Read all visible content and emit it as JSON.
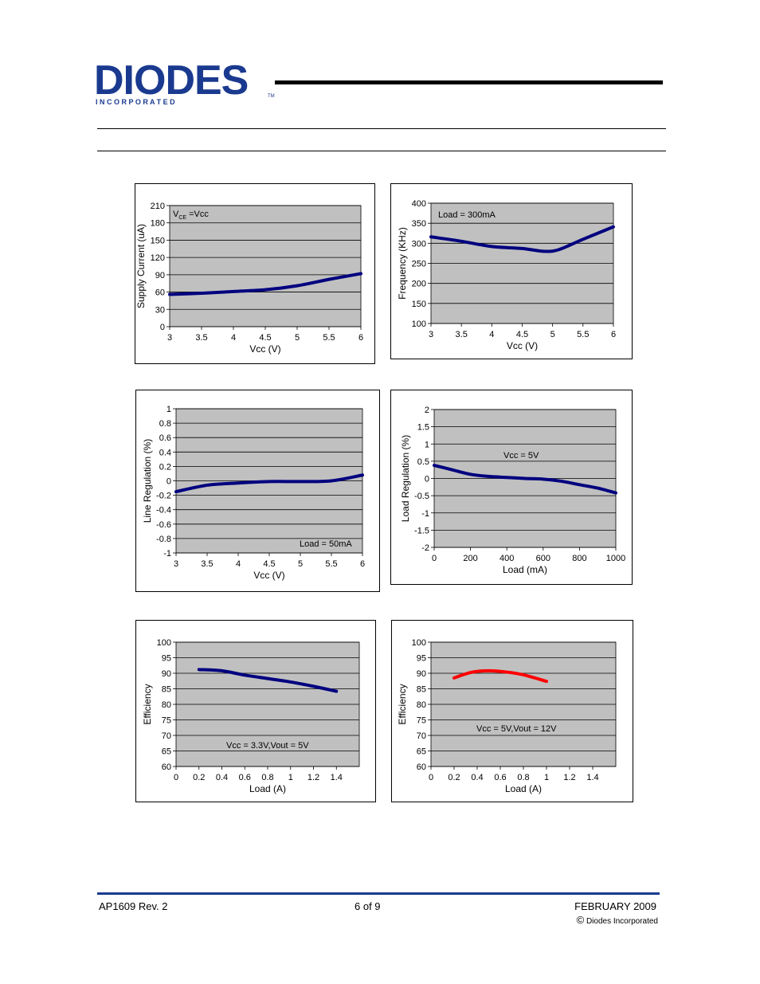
{
  "header": {
    "logo_text": "DIODES",
    "logo_sub": "I N C O R P O R A T E D",
    "trademark": "TM"
  },
  "footer": {
    "left": "AP1609 Rev. 2",
    "center": "6 of 9",
    "right": "FEBRUARY 2009",
    "copyright_symbol": "©",
    "copyright": "Diodes Incorporated"
  },
  "colors": {
    "brand": "#1a3a8f",
    "curve_blue": "#00007f",
    "curve_red": "#ff0000",
    "plot_bg": "#c0c0c0"
  },
  "chart_data": [
    {
      "type": "line",
      "xlabel": "Vcc (V)",
      "ylabel": "Supply Current (uA)",
      "annotation_main": "V",
      "annotation_sub": "CE",
      "annotation_rest": " =Vcc",
      "xlim": [
        3,
        6
      ],
      "ylim": [
        0,
        210
      ],
      "xticks": [
        "3",
        "3.5",
        "4",
        "4.5",
        "5",
        "5.5",
        "6"
      ],
      "yticks": [
        "0",
        "30",
        "60",
        "90",
        "120",
        "150",
        "180",
        "210"
      ],
      "color": "#00007f",
      "x": [
        3,
        3.5,
        4,
        4.5,
        5,
        5.5,
        6
      ],
      "y": [
        56,
        58,
        61,
        64,
        71,
        82,
        92
      ]
    },
    {
      "type": "line",
      "xlabel": "Vcc (V)",
      "ylabel": "Frequency (KHz)",
      "annotation": "Load = 300mA",
      "xlim": [
        3,
        6
      ],
      "ylim": [
        100,
        400
      ],
      "xticks": [
        "3",
        "3.5",
        "4",
        "4.5",
        "5",
        "5.5",
        "6"
      ],
      "yticks": [
        "100",
        "150",
        "200",
        "250",
        "300",
        "350",
        "400"
      ],
      "color": "#00007f",
      "x": [
        3,
        3.5,
        4,
        4.5,
        4.85,
        5.1,
        5.5,
        6
      ],
      "y": [
        316,
        305,
        292,
        287,
        280,
        284,
        310,
        341
      ]
    },
    {
      "type": "line",
      "xlabel": "Vcc (V)",
      "ylabel": "Line Regulation (%)",
      "annotation": "Load = 50mA",
      "xlim": [
        3,
        6
      ],
      "ylim": [
        -1,
        1
      ],
      "xticks": [
        "3",
        "3.5",
        "4",
        "4.5",
        "5",
        "5.5",
        "6"
      ],
      "yticks": [
        "-1",
        "-0.8",
        "-0.6",
        "-0.4",
        "-0.2",
        "0",
        "0.2",
        "0.4",
        "0.6",
        "0.8",
        "1"
      ],
      "color": "#00007f",
      "x": [
        3,
        3.5,
        4,
        4.5,
        5,
        5.5,
        6
      ],
      "y": [
        -0.15,
        -0.06,
        -0.03,
        -0.01,
        -0.01,
        0.0,
        0.08
      ]
    },
    {
      "type": "line",
      "xlabel": "Load (mA)",
      "ylabel": "Load Regulation (%)",
      "annotation": "Vcc = 5V",
      "xlim": [
        0,
        1000
      ],
      "ylim": [
        -2,
        2
      ],
      "xticks": [
        "0",
        "200",
        "400",
        "600",
        "800",
        "1000"
      ],
      "yticks": [
        "-2",
        "-1.5",
        "-1",
        "-0.5",
        "0",
        "0.5",
        "1",
        "1.5",
        "2"
      ],
      "color": "#00007f",
      "x": [
        0,
        100,
        200,
        300,
        400,
        500,
        600,
        700,
        800,
        900,
        1000
      ],
      "y": [
        0.38,
        0.25,
        0.12,
        0.06,
        0.03,
        0.0,
        -0.02,
        -0.08,
        -0.18,
        -0.28,
        -0.42
      ]
    },
    {
      "type": "line",
      "xlabel": "Load (A)",
      "ylabel": "Efficiency",
      "annotation": "Vcc = 3.3V,Vout = 5V",
      "xlim": [
        0,
        1.6
      ],
      "ylim": [
        60,
        100
      ],
      "xticks": [
        "0",
        "0.2",
        "0.4",
        "0.6",
        "0.8",
        "1",
        "1.2",
        "1.4"
      ],
      "yticks": [
        "60",
        "65",
        "70",
        "75",
        "80",
        "85",
        "90",
        "95",
        "100"
      ],
      "color": "#00007f",
      "x": [
        0.2,
        0.4,
        0.6,
        0.8,
        1.0,
        1.2,
        1.4
      ],
      "y": [
        91.2,
        90.8,
        89.4,
        88.3,
        87.2,
        85.8,
        84.2
      ]
    },
    {
      "type": "line",
      "xlabel": "Load (A)",
      "ylabel": "Efficiency",
      "annotation": "Vcc = 5V,Vout = 12V",
      "xlim": [
        0,
        1.6
      ],
      "ylim": [
        60,
        100
      ],
      "xticks": [
        "0",
        "0.2",
        "0.4",
        "0.6",
        "0.8",
        "1",
        "1.2",
        "1.4"
      ],
      "yticks": [
        "60",
        "65",
        "70",
        "75",
        "80",
        "85",
        "90",
        "95",
        "100"
      ],
      "color": "#ff0000",
      "x": [
        0.2,
        0.35,
        0.5,
        0.65,
        0.8,
        1.0
      ],
      "y": [
        88.5,
        90.3,
        90.8,
        90.4,
        89.5,
        87.4
      ]
    }
  ]
}
